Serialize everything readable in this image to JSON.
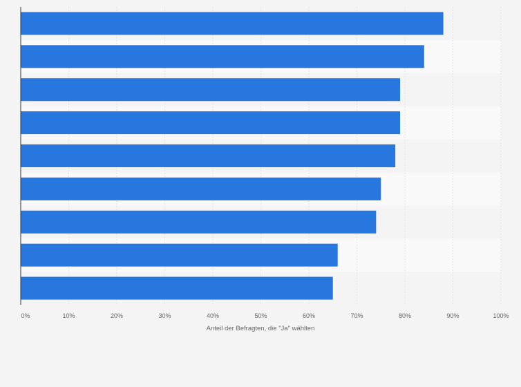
{
  "chart_data": {
    "type": "bar",
    "orientation": "horizontal",
    "categories": [
      "",
      "",
      "",
      "",
      "",
      "",
      "",
      "",
      ""
    ],
    "values": [
      88,
      84,
      79,
      79,
      78,
      75,
      74,
      66,
      65
    ],
    "xlabel": "Anteil der Befragten, die \"Ja\" wählten",
    "ylabel": "",
    "xlim": [
      0,
      100
    ],
    "xticks": [
      "0%",
      "10%",
      "20%",
      "30%",
      "40%",
      "50%",
      "60%",
      "70%",
      "80%",
      "90%",
      "100%"
    ],
    "grid": true,
    "legend": "none"
  },
  "colors": {
    "bar": "#2777df",
    "background": "#f4f4f4",
    "band_light": "#f9f9f9",
    "grid": "#e3e3e3",
    "axis": "#333333",
    "text": "#666666"
  }
}
